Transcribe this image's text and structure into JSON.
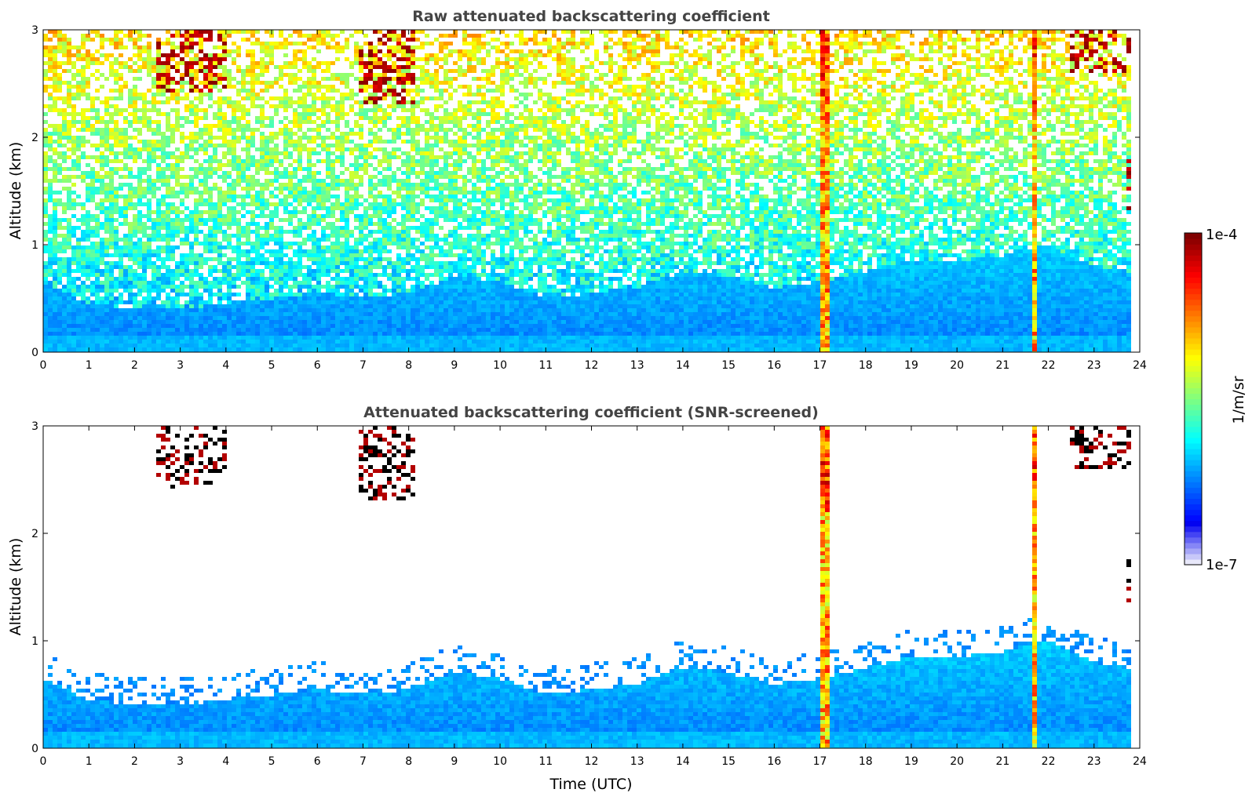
{
  "chart_data": [
    {
      "type": "heatmap",
      "title": "Raw attenuated backscattering coefficient",
      "xlabel": "",
      "ylabel": "Altitude (km)",
      "xlim": [
        0,
        24
      ],
      "ylim": [
        0,
        3
      ],
      "x_ticks": [
        "0",
        "1",
        "2",
        "3",
        "4",
        "5",
        "6",
        "7",
        "8",
        "9",
        "10",
        "11",
        "12",
        "13",
        "14",
        "15",
        "16",
        "17",
        "18",
        "19",
        "20",
        "21",
        "22",
        "23",
        "24"
      ],
      "y_ticks": [
        "0",
        "1",
        "2",
        "3"
      ],
      "screened": false,
      "features": [
        {
          "kind": "precipitation-streak",
          "x": 17.1,
          "altitude_range_km": [
            0,
            3
          ]
        },
        {
          "kind": "precipitation-streak",
          "x": 21.7,
          "altitude_range_km": [
            0,
            3
          ]
        },
        {
          "kind": "cloud",
          "x_range": [
            2.5,
            4.0
          ],
          "altitude_range_km": [
            2.4,
            3.0
          ]
        },
        {
          "kind": "cloud",
          "x_range": [
            6.9,
            8.1
          ],
          "altitude_range_km": [
            2.3,
            3.0
          ]
        },
        {
          "kind": "cloud",
          "x_range": [
            22.5,
            23.8
          ],
          "altitude_range_km": [
            2.6,
            3.0
          ]
        },
        {
          "kind": "cloud",
          "x_range": [
            23.7,
            23.8
          ],
          "altitude_range_km": [
            1.3,
            1.8
          ]
        }
      ]
    },
    {
      "type": "heatmap",
      "title": "Attenuated backscattering coefficient (SNR-screened)",
      "xlabel": "Time (UTC)",
      "ylabel": "Altitude (km)",
      "xlim": [
        0,
        24
      ],
      "ylim": [
        0,
        3
      ],
      "x_ticks": [
        "0",
        "1",
        "2",
        "3",
        "4",
        "5",
        "6",
        "7",
        "8",
        "9",
        "10",
        "11",
        "12",
        "13",
        "14",
        "15",
        "16",
        "17",
        "18",
        "19",
        "20",
        "21",
        "22",
        "23",
        "24"
      ],
      "y_ticks": [
        "0",
        "1",
        "2",
        "3"
      ],
      "screened": true,
      "boundary_layer_top_km": {
        "x": [
          0,
          1,
          2,
          3,
          4,
          5,
          6,
          7,
          8,
          9,
          10,
          11,
          12,
          13,
          14,
          15,
          16,
          17,
          18,
          19,
          20,
          21,
          22,
          23,
          23.8
        ],
        "y": [
          0.65,
          0.45,
          0.4,
          0.4,
          0.45,
          0.5,
          0.55,
          0.5,
          0.55,
          0.7,
          0.65,
          0.5,
          0.55,
          0.6,
          0.75,
          0.7,
          0.6,
          0.65,
          0.75,
          0.85,
          0.85,
          0.9,
          1.0,
          0.8,
          0.75
        ]
      }
    }
  ],
  "colorbar": {
    "label": "1/m/sr",
    "max_label": "1e-4",
    "min_label": "1e-7",
    "scale": "log",
    "range": [
      1e-07,
      0.0001
    ]
  }
}
